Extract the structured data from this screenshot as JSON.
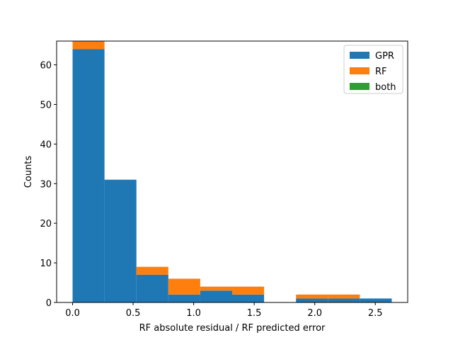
{
  "chart_data": {
    "type": "bar",
    "stacked": true,
    "histogram": true,
    "bin_edges": [
      0.0,
      0.2636,
      0.5272,
      0.7908,
      1.0544,
      1.318,
      1.5816,
      1.8452,
      2.1088,
      2.3724,
      2.636
    ],
    "series": [
      {
        "name": "GPR",
        "color": "#1f77b4",
        "values": [
          64,
          31,
          7,
          2,
          3,
          2,
          0,
          1,
          1,
          1
        ]
      },
      {
        "name": "RF",
        "color": "#ff7f0e",
        "values": [
          2,
          0,
          2,
          4,
          1,
          2,
          0,
          1,
          1,
          0
        ]
      },
      {
        "name": "both",
        "color": "#2ca02c",
        "values": [
          0,
          0,
          0,
          0,
          0,
          0,
          0,
          0,
          0,
          0
        ]
      }
    ],
    "xlabel": "RF absolute residual / RF predicted error",
    "ylabel": "Counts",
    "xlim": [
      -0.1318,
      2.7678
    ],
    "ylim": [
      0,
      66
    ],
    "xticks": [
      0.0,
      0.5,
      1.0,
      1.5,
      2.0,
      2.5
    ],
    "xtick_labels": [
      "0.0",
      "0.5",
      "1.0",
      "1.5",
      "2.0",
      "2.5"
    ],
    "yticks": [
      0,
      10,
      20,
      30,
      40,
      50,
      60
    ],
    "ytick_labels": [
      "0",
      "10",
      "20",
      "30",
      "40",
      "50",
      "60"
    ],
    "grid": false,
    "legend_position": "top-right"
  }
}
